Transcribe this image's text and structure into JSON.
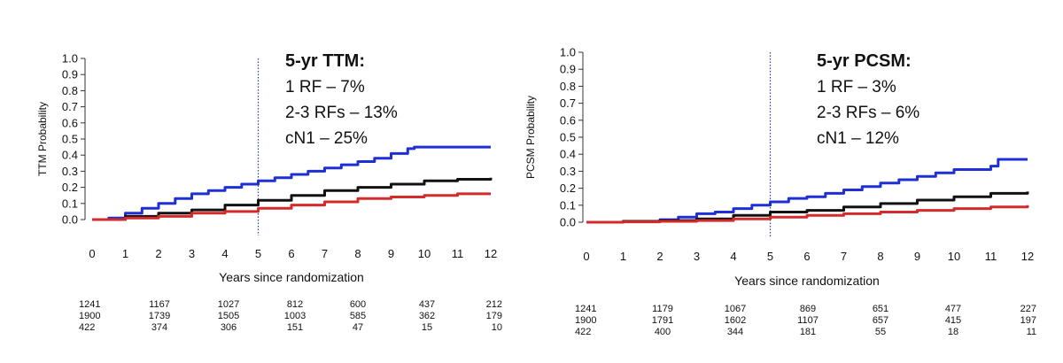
{
  "chart_data": [
    {
      "type": "line",
      "ylabel": "TTM Probability",
      "xlabel": "Years since randomization",
      "xlim": [
        0,
        12
      ],
      "ylim": [
        0,
        1.0
      ],
      "x_ticks": [
        "0",
        "1",
        "2",
        "3",
        "4",
        "5",
        "6",
        "7",
        "8",
        "9",
        "10",
        "11",
        "12"
      ],
      "y_ticks": [
        "0.0",
        "0.1",
        "0.2",
        "0.3",
        "0.4",
        "0.5",
        "0.6",
        "0.7",
        "0.8",
        "0.9",
        "1.0"
      ],
      "reference_line_x": 5,
      "annotation": {
        "title": "5-yr TTM:",
        "lines": [
          "1 RF – 7%",
          "2-3 RFs – 13%",
          "cN1 – 25%"
        ]
      },
      "series": [
        {
          "color": "#1f2fd6",
          "x": [
            0,
            0.5,
            1,
            1.5,
            2,
            2.5,
            3,
            3.5,
            4,
            4.5,
            5,
            5.5,
            6,
            6.5,
            7,
            7.5,
            8,
            8.5,
            9,
            9.5,
            9.7,
            12
          ],
          "y": [
            0,
            0.01,
            0.04,
            0.07,
            0.1,
            0.13,
            0.16,
            0.18,
            0.2,
            0.22,
            0.24,
            0.26,
            0.28,
            0.3,
            0.32,
            0.34,
            0.36,
            0.38,
            0.41,
            0.44,
            0.45,
            0.45
          ]
        },
        {
          "color": "#111111",
          "x": [
            0,
            1,
            2,
            3,
            4,
            5,
            6,
            7,
            8,
            9,
            10,
            11,
            12
          ],
          "y": [
            0,
            0.02,
            0.04,
            0.06,
            0.09,
            0.12,
            0.15,
            0.18,
            0.2,
            0.22,
            0.24,
            0.25,
            0.26
          ]
        },
        {
          "color": "#d42a2a",
          "x": [
            0,
            1,
            2,
            3,
            4,
            5,
            6,
            7,
            8,
            9,
            10,
            11,
            12
          ],
          "y": [
            0,
            0.01,
            0.02,
            0.04,
            0.05,
            0.07,
            0.09,
            0.11,
            0.13,
            0.14,
            0.15,
            0.16,
            0.16
          ]
        }
      ],
      "risk_table": {
        "at_years": [
          "0",
          "2",
          "4",
          "6",
          "8",
          "10",
          "12"
        ],
        "rows": [
          [
            "1241",
            "1167",
            "1027",
            "812",
            "600",
            "437",
            "212"
          ],
          [
            "1900",
            "1739",
            "1505",
            "1003",
            "585",
            "362",
            "179"
          ],
          [
            "422",
            "374",
            "306",
            "151",
            "47",
            "15",
            "10"
          ]
        ]
      }
    },
    {
      "type": "line",
      "ylabel": "PCSM Probability",
      "xlabel": "Years since randomization",
      "xlim": [
        0,
        12
      ],
      "ylim": [
        0,
        1.0
      ],
      "x_ticks": [
        "0",
        "1",
        "2",
        "3",
        "4",
        "5",
        "6",
        "7",
        "8",
        "9",
        "10",
        "11",
        "12"
      ],
      "y_ticks": [
        "0.0",
        "0.1",
        "0.2",
        "0.3",
        "0.4",
        "0.5",
        "0.6",
        "0.7",
        "0.8",
        "0.9",
        "1.0"
      ],
      "reference_line_x": 5,
      "annotation": {
        "title": "5-yr PCSM:",
        "lines": [
          "1 RF – 3%",
          "2-3 RFs – 6%",
          "cN1 – 12%"
        ]
      },
      "series": [
        {
          "color": "#1f2fd6",
          "x": [
            0,
            1,
            2,
            2.5,
            3,
            3.5,
            4,
            4.5,
            5,
            5.5,
            6,
            6.5,
            7,
            7.5,
            8,
            8.5,
            9,
            9.5,
            10,
            10.5,
            11,
            11.2,
            12
          ],
          "y": [
            0,
            0.005,
            0.015,
            0.03,
            0.05,
            0.06,
            0.08,
            0.1,
            0.12,
            0.14,
            0.15,
            0.17,
            0.19,
            0.21,
            0.23,
            0.25,
            0.27,
            0.29,
            0.31,
            0.31,
            0.33,
            0.37,
            0.37
          ]
        },
        {
          "color": "#111111",
          "x": [
            0,
            1,
            2,
            3,
            4,
            5,
            6,
            7,
            8,
            9,
            10,
            11,
            12
          ],
          "y": [
            0,
            0.005,
            0.01,
            0.02,
            0.04,
            0.06,
            0.07,
            0.09,
            0.11,
            0.13,
            0.15,
            0.17,
            0.18
          ]
        },
        {
          "color": "#d42a2a",
          "x": [
            0,
            1,
            2,
            3,
            4,
            5,
            6,
            7,
            8,
            9,
            10,
            11,
            12
          ],
          "y": [
            0,
            0.002,
            0.005,
            0.01,
            0.02,
            0.03,
            0.04,
            0.05,
            0.06,
            0.07,
            0.08,
            0.09,
            0.1
          ]
        }
      ],
      "risk_table": {
        "at_years": [
          "0",
          "2",
          "4",
          "6",
          "8",
          "10",
          "12"
        ],
        "rows": [
          [
            "1241",
            "1179",
            "1067",
            "869",
            "651",
            "477",
            "227"
          ],
          [
            "1900",
            "1791",
            "1602",
            "1107",
            "657",
            "415",
            "197"
          ],
          [
            "422",
            "400",
            "344",
            "181",
            "55",
            "18",
            "11"
          ]
        ]
      }
    }
  ]
}
